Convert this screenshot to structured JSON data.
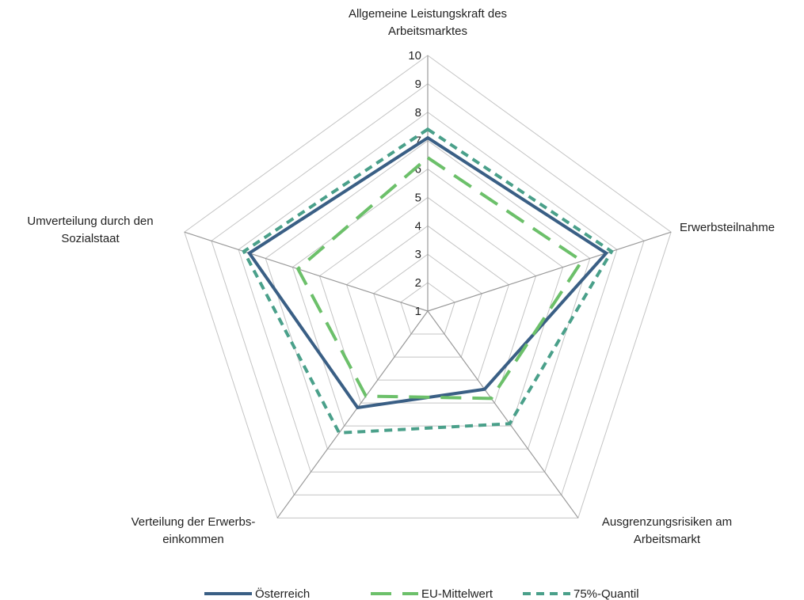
{
  "chart_data": {
    "type": "radar",
    "axes": [
      [
        "Allgemeine Leistungskraft des",
        "Arbeitsmarktes"
      ],
      [
        "Erwerbsteilnahme"
      ],
      [
        "Ausgrenzungsrisiken am",
        "Arbeitsmarkt"
      ],
      [
        "Verteilung der Erwerbs-",
        "einkommen"
      ],
      [
        "Umverteilung durch den",
        "Sozialstaat"
      ]
    ],
    "rmin": 1,
    "rmax": 10,
    "ticks": [
      "1",
      "2",
      "3",
      "4",
      "5",
      "6",
      "7",
      "8",
      "9",
      "10"
    ],
    "series": [
      {
        "name": "Österreich",
        "values": [
          7.1,
          7.6,
          4.4,
          5.2,
          7.6
        ],
        "color": "#3a5f85",
        "dash": "solid"
      },
      {
        "name": "EU-Mittelwert",
        "values": [
          6.4,
          6.7,
          4.8,
          4.7,
          5.8
        ],
        "color": "#6cc06a",
        "dash": "long-dash"
      },
      {
        "name": "75%-Quantil",
        "values": [
          7.4,
          7.8,
          5.9,
          6.3,
          7.8
        ],
        "color": "#4aa08a",
        "dash": "short-dash"
      }
    ],
    "grid": true,
    "legend": "bottom"
  }
}
